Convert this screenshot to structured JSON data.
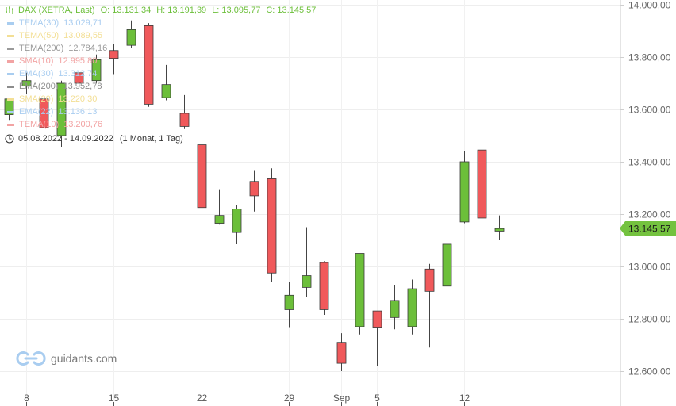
{
  "header": {
    "instrument": "DAX (XETRA, Last)",
    "open": "O: 13.131,34",
    "high": "H: 13.191,39",
    "low": "L: 13.095,77",
    "close": "C: 13.145,57"
  },
  "indicators": [
    {
      "name": "TEMA(30)",
      "value": "13.029,71",
      "color": "#a9cdf0"
    },
    {
      "name": "TEMA(50)",
      "value": "13.089,55",
      "color": "#f3df95"
    },
    {
      "name": "TEMA(200)",
      "value": "12.784,16",
      "color": "#9a9a9a"
    },
    {
      "name": "SMA(10)",
      "value": "12.995,80",
      "color": "#f2a3a3"
    },
    {
      "name": "EMA(30)",
      "value": "13.312,74",
      "color": "#a9cdf0"
    },
    {
      "name": "EMA(200)",
      "value": "13.952,78",
      "color": "#8c8c8c"
    },
    {
      "name": "SMA(20)",
      "value": "13.220,30",
      "color": "#f3df95"
    },
    {
      "name": "EMA(22)",
      "value": "13.136,13",
      "color": "#a9cdf0"
    },
    {
      "name": "TEMA(10)",
      "value": "13.200,76",
      "color": "#f2a3a3"
    }
  ],
  "range": {
    "dates": "05.08.2022 - 14.09.2022",
    "period": "(1 Monat, 1 Tag)"
  },
  "brand": {
    "name": "guidants.com"
  },
  "price_tag": "13.145,57",
  "colors": {
    "up": "#6cbf3a",
    "down": "#f0595b",
    "tag": "#74c23f"
  },
  "chart_data": {
    "type": "candlestick",
    "yaxis_ticks": [
      "14.000,00",
      "13.800,00",
      "13.600,00",
      "13.400,00",
      "13.200,00",
      "13.000,00",
      "12.800,00",
      "12.600,00"
    ],
    "ylim": [
      12400,
      14020
    ],
    "xaxis_ticks": [
      {
        "label": "8",
        "index": 1
      },
      {
        "label": "15",
        "index": 6
      },
      {
        "label": "22",
        "index": 11
      },
      {
        "label": "29",
        "index": 16
      },
      {
        "label": "Sep",
        "index": 19
      },
      {
        "label": "5",
        "index": 21
      },
      {
        "label": "12",
        "index": 26
      }
    ],
    "last_close": 13145.57,
    "candles": [
      {
        "o": 13580,
        "h": 13640,
        "l": 13560,
        "c": 13640
      },
      {
        "o": 13690,
        "h": 13740,
        "l": 13660,
        "c": 13710
      },
      {
        "o": 13640,
        "h": 13670,
        "l": 13510,
        "c": 13530
      },
      {
        "o": 13500,
        "h": 13710,
        "l": 13455,
        "c": 13700
      },
      {
        "o": 13740,
        "h": 13770,
        "l": 13690,
        "c": 13700
      },
      {
        "o": 13710,
        "h": 13810,
        "l": 13700,
        "c": 13790
      },
      {
        "o": 13825,
        "h": 13850,
        "l": 13735,
        "c": 13795
      },
      {
        "o": 13845,
        "h": 13940,
        "l": 13835,
        "c": 13905
      },
      {
        "o": 13920,
        "h": 13930,
        "l": 13610,
        "c": 13620
      },
      {
        "o": 13645,
        "h": 13770,
        "l": 13635,
        "c": 13695
      },
      {
        "o": 13585,
        "h": 13655,
        "l": 13525,
        "c": 13535
      },
      {
        "o": 13465,
        "h": 13505,
        "l": 13190,
        "c": 13225
      },
      {
        "o": 13165,
        "h": 13295,
        "l": 13160,
        "c": 13195
      },
      {
        "o": 13130,
        "h": 13235,
        "l": 13085,
        "c": 13220
      },
      {
        "o": 13325,
        "h": 13365,
        "l": 13210,
        "c": 13270
      },
      {
        "o": 13335,
        "h": 13375,
        "l": 12940,
        "c": 12975
      },
      {
        "o": 12835,
        "h": 12940,
        "l": 12765,
        "c": 12890
      },
      {
        "o": 12920,
        "h": 13150,
        "l": 12885,
        "c": 12965
      },
      {
        "o": 13015,
        "h": 13020,
        "l": 12815,
        "c": 12835
      },
      {
        "o": 12710,
        "h": 12745,
        "l": 12600,
        "c": 12630
      },
      {
        "o": 12770,
        "h": 13050,
        "l": 12740,
        "c": 13050
      },
      {
        "o": 12830,
        "h": 12830,
        "l": 12620,
        "c": 12765
      },
      {
        "o": 12805,
        "h": 12930,
        "l": 12760,
        "c": 12870
      },
      {
        "o": 12770,
        "h": 12950,
        "l": 12740,
        "c": 12915
      },
      {
        "o": 12990,
        "h": 13010,
        "l": 12690,
        "c": 12905
      },
      {
        "o": 12925,
        "h": 13120,
        "l": 12925,
        "c": 13085
      },
      {
        "o": 13170,
        "h": 13440,
        "l": 13165,
        "c": 13400
      },
      {
        "o": 13445,
        "h": 13565,
        "l": 13180,
        "c": 13185
      },
      {
        "o": 13135,
        "h": 13195,
        "l": 13100,
        "c": 13145
      }
    ]
  }
}
